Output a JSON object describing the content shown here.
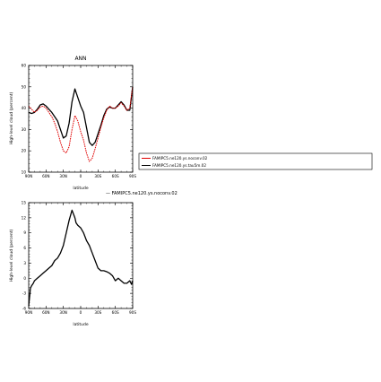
{
  "chart_data": [
    {
      "type": "line",
      "title": "ANN",
      "xlabel": "latitude",
      "ylabel": "High-level cloud (percent)",
      "xlim": [
        -90,
        90
      ],
      "x_reversed": true,
      "ylim": [
        10,
        60
      ],
      "x_ticks": [
        90,
        60,
        30,
        0,
        -30,
        -60,
        -90
      ],
      "x_tick_labels": [
        "90N",
        "60N",
        "30N",
        "0",
        "30S",
        "60S",
        "90S"
      ],
      "y_ticks": [
        10,
        20,
        30,
        40,
        50,
        60
      ],
      "y_tick_labels": [
        "10",
        "20",
        "30",
        "40",
        "50",
        "60"
      ],
      "legend_position": "right",
      "series": [
        {
          "name": "FAMIPC5.ne120.ys.noconv.02",
          "color": "#e00000",
          "dash": "dashed",
          "x": [
            90,
            85,
            80,
            75,
            70,
            65,
            60,
            55,
            50,
            45,
            40,
            35,
            30,
            25,
            20,
            15,
            10,
            5,
            0,
            -5,
            -10,
            -15,
            -20,
            -25,
            -30,
            -35,
            -40,
            -45,
            -50,
            -55,
            -60,
            -65,
            -70,
            -75,
            -80,
            -85,
            -90
          ],
          "values": [
            41,
            39.5,
            38,
            39,
            40.5,
            41,
            40,
            38,
            36,
            33,
            29,
            24,
            20,
            19,
            22,
            30,
            36.5,
            34,
            29,
            25,
            19,
            15,
            16.5,
            21,
            26,
            31,
            35.5,
            39,
            41,
            40,
            40,
            41,
            42.5,
            41,
            39,
            40,
            50
          ]
        },
        {
          "name": "FAMIPC5.ne120.ys.tau5m.02",
          "color": "#000000",
          "dash": "solid",
          "x": [
            90,
            85,
            80,
            75,
            70,
            65,
            60,
            55,
            50,
            45,
            40,
            35,
            30,
            25,
            20,
            15,
            10,
            5,
            0,
            -5,
            -10,
            -15,
            -20,
            -25,
            -30,
            -35,
            -40,
            -45,
            -50,
            -55,
            -60,
            -65,
            -70,
            -75,
            -80,
            -85,
            -90
          ],
          "values": [
            38,
            37.5,
            38,
            39.5,
            41.5,
            42,
            41,
            39.5,
            38,
            36,
            34,
            30,
            26,
            27,
            33,
            43,
            49,
            45,
            41,
            38,
            31,
            24,
            22.5,
            24,
            28,
            32,
            36.5,
            39.5,
            40.5,
            40,
            40,
            41.5,
            43,
            41.5,
            39,
            39,
            50
          ]
        }
      ]
    },
    {
      "type": "line",
      "title": "",
      "legend_text": "— FAMIPC5.ne120.ys.noconv.02",
      "xlabel": "latitude",
      "ylabel": "High-level cloud (percent)",
      "xlim": [
        -90,
        90
      ],
      "x_reversed": true,
      "ylim": [
        -6,
        15
      ],
      "x_ticks": [
        90,
        60,
        30,
        0,
        -30,
        -60,
        -90
      ],
      "x_tick_labels": [
        "90N",
        "60N",
        "30N",
        "0",
        "30S",
        "60S",
        "90S"
      ],
      "y_ticks": [
        -6,
        -3,
        0,
        3,
        6,
        9,
        12,
        15
      ],
      "y_tick_labels": [
        "-6",
        "-3",
        "0",
        "3",
        "6",
        "9",
        "12",
        "15"
      ],
      "series": [
        {
          "name": "",
          "color": "#000000",
          "dash": "solid",
          "x": [
            90,
            87,
            85,
            82,
            80,
            75,
            70,
            65,
            60,
            55,
            50,
            45,
            40,
            35,
            30,
            25,
            20,
            15,
            10,
            8,
            5,
            0,
            -5,
            -10,
            -15,
            -20,
            -25,
            -30,
            -35,
            -40,
            -45,
            -50,
            -55,
            -60,
            -65,
            -70,
            -75,
            -80,
            -85,
            -88,
            -90
          ],
          "values": [
            -5.5,
            -2,
            -1.5,
            -1,
            -0.5,
            0,
            0.5,
            1,
            1.5,
            2,
            2.5,
            3.5,
            4,
            5,
            6.5,
            9,
            11.5,
            13.5,
            12,
            11,
            10.5,
            10,
            9,
            7.5,
            6.5,
            5,
            3.5,
            2,
            1.5,
            1.5,
            1.3,
            1,
            0.5,
            -0.5,
            0,
            -0.5,
            -1,
            -1,
            -0.5,
            -1.2,
            -0.5
          ]
        }
      ]
    }
  ]
}
